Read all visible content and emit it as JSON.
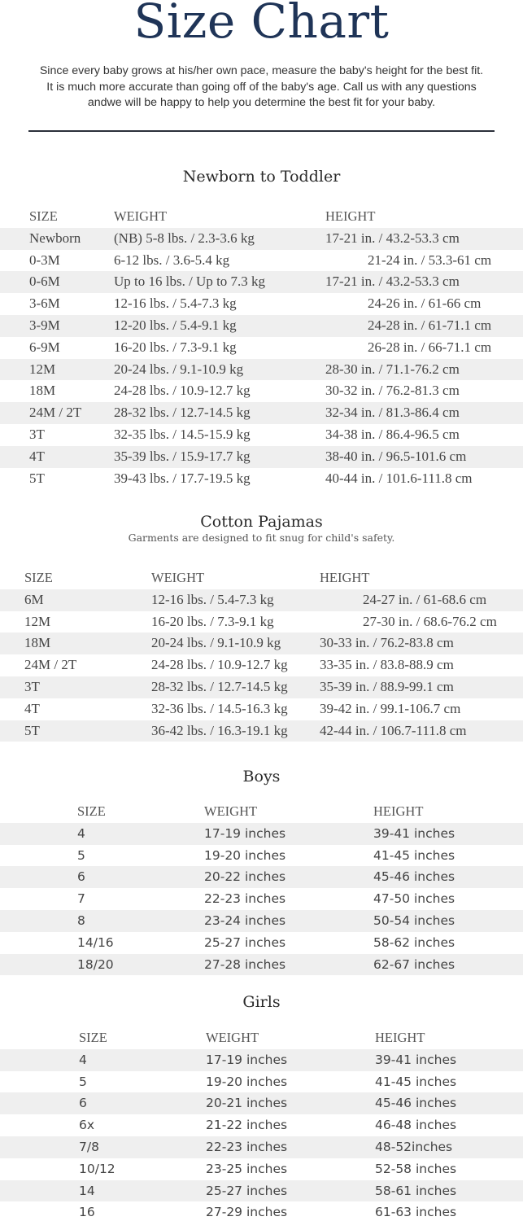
{
  "header": {
    "title": "Size Chart",
    "intro_lines": [
      "Since every baby grows at his/her own pace, measure the baby's height for the best fit.",
      "It is much more accurate than going off of the baby's age. Call us with any questions",
      "andwe will be happy to help you determine the best fit for your baby."
    ]
  },
  "sections": [
    {
      "title": "Newborn to Toddler",
      "columns": [
        "SIZE",
        "WEIGHT",
        "HEIGHT"
      ],
      "rows": [
        [
          "Newborn",
          "(NB)   5-8 lbs. / 2.3-3.6 kg",
          "17-21 in. / 43.2-53.3 cm"
        ],
        [
          "0-3M",
          "6-12 lbs. / 3.6-5.4 kg",
          "21-24 in. / 53.3-61 cm"
        ],
        [
          "0-6M",
          "Up to 16 lbs. / Up to 7.3 kg",
          "17-21 in. / 43.2-53.3 cm"
        ],
        [
          "3-6M",
          "12-16 lbs. / 5.4-7.3 kg",
          "24-26 in. / 61-66 cm"
        ],
        [
          "3-9M",
          "12-20 lbs. / 5.4-9.1 kg",
          "24-28 in. / 61-71.1 cm"
        ],
        [
          "6-9M",
          "16-20 lbs. / 7.3-9.1 kg",
          "26-28 in. / 66-71.1 cm"
        ],
        [
          "12M",
          "20-24 lbs. / 9.1-10.9 kg",
          "28-30 in. / 71.1-76.2 cm"
        ],
        [
          "18M",
          "24-28 lbs. / 10.9-12.7 kg",
          "30-32 in. / 76.2-81.3 cm"
        ],
        [
          "24M / 2T",
          "28-32 lbs. / 12.7-14.5 kg",
          "32-34 in. / 81.3-86.4 cm"
        ],
        [
          "3T",
          "32-35 lbs. / 14.5-15.9 kg",
          "34-38 in. / 86.4-96.5 cm"
        ],
        [
          "4T",
          "35-39 lbs. / 15.9-17.7 kg",
          "38-40 in. / 96.5-101.6 cm"
        ],
        [
          "5T",
          "39-43 lbs. / 17.7-19.5 kg",
          "40-44 in. / 101.6-111.8 cm"
        ]
      ]
    },
    {
      "title": "Cotton Pajamas",
      "subtitle": "Garments are designed to fit snug for child's safety.",
      "columns": [
        "SIZE",
        "WEIGHT",
        "HEIGHT"
      ],
      "rows": [
        [
          "6M",
          "12-16 lbs. / 5.4-7.3 kg",
          "24-27 in. / 61-68.6 cm"
        ],
        [
          "12M",
          "16-20 lbs. / 7.3-9.1 kg",
          "27-30 in. / 68.6-76.2 cm"
        ],
        [
          "18M",
          "20-24 lbs. / 9.1-10.9 kg",
          "30-33 in. / 76.2-83.8 cm"
        ],
        [
          "24M / 2T",
          "24-28 lbs. / 10.9-12.7 kg",
          "33-35 in. / 83.8-88.9 cm"
        ],
        [
          "3T",
          "28-32 lbs. / 12.7-14.5 kg",
          "35-39 in. / 88.9-99.1 cm"
        ],
        [
          "4T",
          "32-36 lbs. / 14.5-16.3 kg",
          "39-42 in. / 99.1-106.7 cm"
        ],
        [
          "5T",
          "36-42 lbs. / 16.3-19.1 kg",
          "42-44 in. / 106.7-111.8 cm"
        ]
      ]
    },
    {
      "title": "Boys",
      "columns": [
        "SIZE",
        "WEIGHT",
        "HEIGHT"
      ],
      "rows": [
        [
          "4",
          "17-19 inches",
          "39-41 inches"
        ],
        [
          "5",
          "19-20 inches",
          "41-45 inches"
        ],
        [
          "6",
          "20-22 inches",
          "45-46 inches"
        ],
        [
          "7",
          "22-23 inches",
          "47-50 inches"
        ],
        [
          "8",
          "23-24 inches",
          "50-54 inches"
        ],
        [
          "14/16",
          "25-27 inches",
          "58-62 inches"
        ],
        [
          "18/20",
          "27-28 inches",
          "62-67 inches"
        ]
      ]
    },
    {
      "title": "Girls",
      "columns": [
        "SIZE",
        "WEIGHT",
        "HEIGHT"
      ],
      "rows": [
        [
          "4",
          "17-19 inches",
          "39-41 inches"
        ],
        [
          "5",
          "19-20 inches",
          "41-45 inches"
        ],
        [
          "6",
          "20-21 inches",
          "45-46 inches"
        ],
        [
          "6x",
          "21-22 inches",
          "46-48 inches"
        ],
        [
          "7/8",
          "22-23 inches",
          "48-52inches"
        ],
        [
          "10/12",
          "23-25 inches",
          "52-58 inches"
        ],
        [
          "14",
          "25-27 inches",
          "58-61 inches"
        ],
        [
          "16",
          "27-29 inches",
          "61-63 inches"
        ]
      ]
    }
  ],
  "colors": {
    "title": "#1f3457",
    "stripe": "#efefef",
    "text": "#444444"
  }
}
